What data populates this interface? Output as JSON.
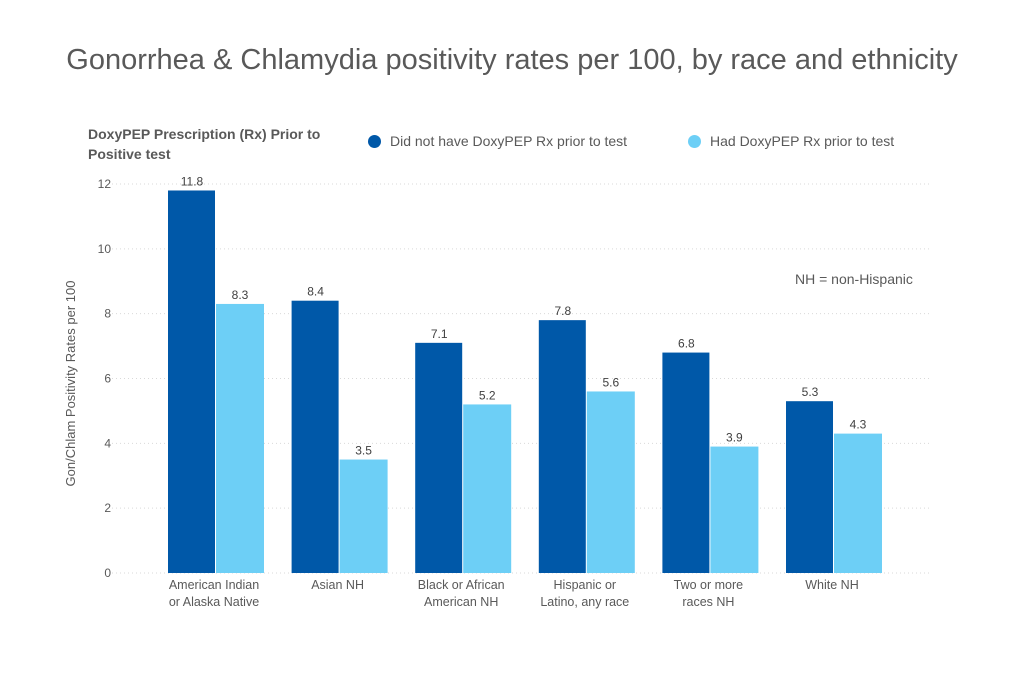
{
  "chart_data": {
    "type": "bar",
    "title": "Gonorrhea & Chlamydia positivity rates per 100, by race and ethnicity",
    "legend_title": "DoxyPEP Prescription (Rx) Prior to Positive test",
    "ylabel": "Gon/Chlam Positivity Rates per 100",
    "xlabel": "",
    "note": "NH = non-Hispanic",
    "ylim": [
      0,
      12
    ],
    "yticks": [
      0,
      2,
      4,
      6,
      8,
      10,
      12
    ],
    "grid": true,
    "legend_position": "top",
    "categories": [
      [
        "American Indian",
        "or Alaska Native"
      ],
      [
        "Asian NH"
      ],
      [
        "Black or African",
        "American NH"
      ],
      [
        "Hispanic or",
        "Latino, any race"
      ],
      [
        "Two or more",
        "races NH"
      ],
      [
        "White NH"
      ]
    ],
    "series": [
      {
        "name": "Did not have DoxyPEP Rx prior to test",
        "color": "#0058a8",
        "values": [
          11.8,
          8.4,
          7.1,
          7.8,
          6.8,
          5.3
        ]
      },
      {
        "name": "Had DoxyPEP Rx prior to test",
        "color": "#6dcff6",
        "values": [
          8.3,
          3.5,
          5.2,
          5.6,
          3.9,
          4.3
        ]
      }
    ]
  }
}
